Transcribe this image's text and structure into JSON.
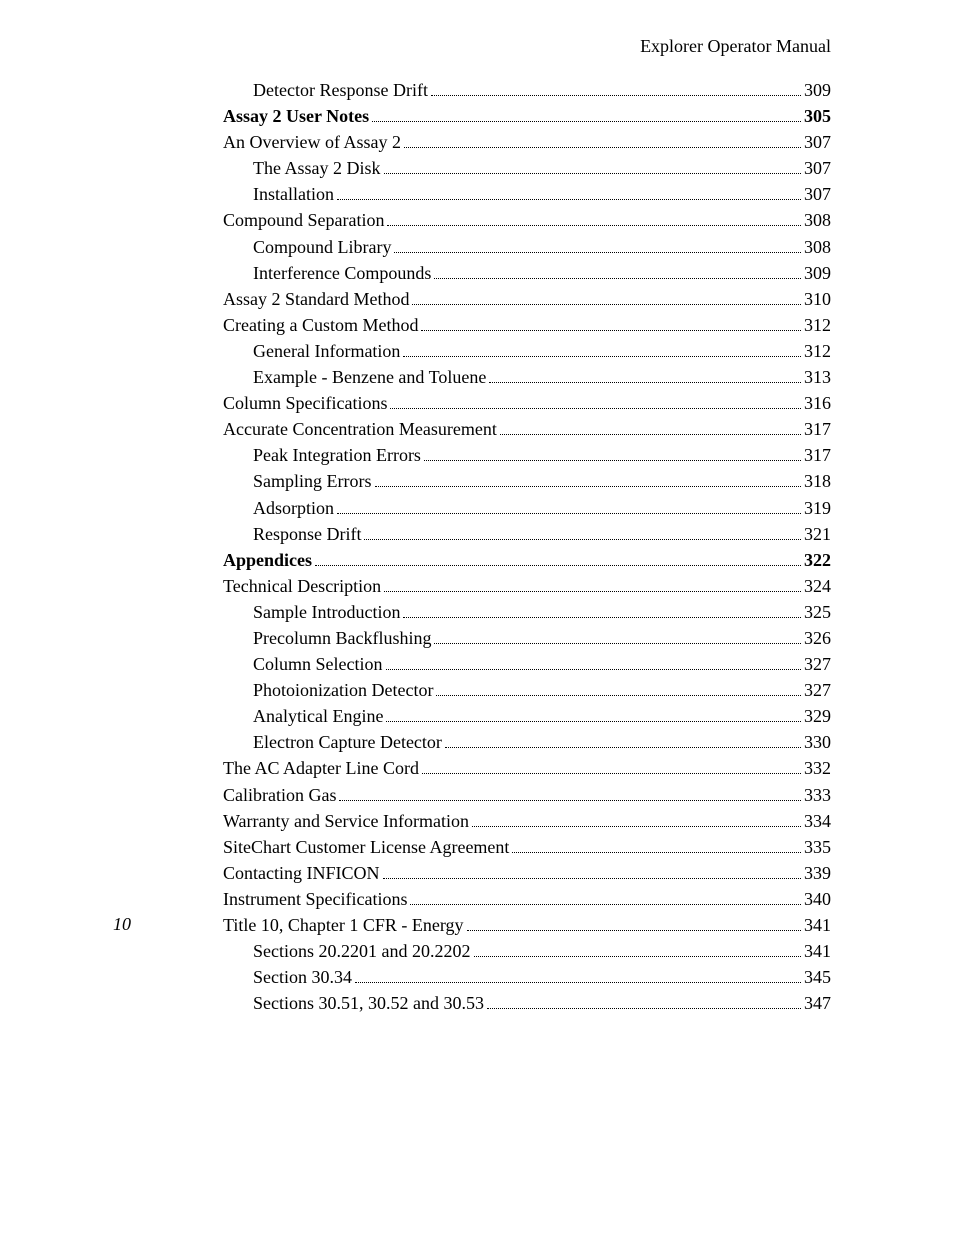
{
  "header": "Explorer Operator Manual",
  "page_number": "10",
  "toc": [
    {
      "title": "Detector Response Drift",
      "page": "309",
      "indent": 1,
      "bold": false
    },
    {
      "title": "Assay 2  User Notes",
      "page": "305",
      "indent": 0,
      "bold": true
    },
    {
      "title": "An Overview of Assay 2",
      "page": "307",
      "indent": 0,
      "bold": false
    },
    {
      "title": "The Assay 2 Disk",
      "page": "307",
      "indent": 1,
      "bold": false
    },
    {
      "title": "Installation",
      "page": "307",
      "indent": 1,
      "bold": false
    },
    {
      "title": "Compound Separation",
      "page": "308",
      "indent": 0,
      "bold": false
    },
    {
      "title": "Compound Library",
      "page": "308",
      "indent": 1,
      "bold": false
    },
    {
      "title": "Interference Compounds",
      "page": "309",
      "indent": 1,
      "bold": false
    },
    {
      "title": "Assay 2 Standard Method",
      "page": "310",
      "indent": 0,
      "bold": false
    },
    {
      "title": "Creating a Custom Method",
      "page": "312",
      "indent": 0,
      "bold": false
    },
    {
      "title": "General Information",
      "page": "312",
      "indent": 1,
      "bold": false
    },
    {
      "title": "Example - Benzene and Toluene",
      "page": "313",
      "indent": 1,
      "bold": false
    },
    {
      "title": "Column Specifications",
      "page": "316",
      "indent": 0,
      "bold": false
    },
    {
      "title": "Accurate Concentration Measurement",
      "page": "317",
      "indent": 0,
      "bold": false
    },
    {
      "title": "Peak Integration Errors",
      "page": "317",
      "indent": 1,
      "bold": false
    },
    {
      "title": "Sampling Errors",
      "page": "318",
      "indent": 1,
      "bold": false
    },
    {
      "title": "Adsorption",
      "page": "319",
      "indent": 1,
      "bold": false
    },
    {
      "title": "Response Drift",
      "page": "321",
      "indent": 1,
      "bold": false
    },
    {
      "title": "Appendices",
      "page": "322",
      "indent": 0,
      "bold": true
    },
    {
      "title": "Technical Description",
      "page": "324",
      "indent": 0,
      "bold": false
    },
    {
      "title": "Sample Introduction",
      "page": "325",
      "indent": 1,
      "bold": false
    },
    {
      "title": "Precolumn Backflushing",
      "page": "326",
      "indent": 1,
      "bold": false
    },
    {
      "title": "Column Selection",
      "page": "327",
      "indent": 1,
      "bold": false
    },
    {
      "title": "Photoionization Detector",
      "page": "327",
      "indent": 1,
      "bold": false
    },
    {
      "title": "Analytical Engine",
      "page": "329",
      "indent": 1,
      "bold": false
    },
    {
      "title": "Electron Capture Detector",
      "page": "330",
      "indent": 1,
      "bold": false
    },
    {
      "title": "The AC Adapter Line Cord",
      "page": "332",
      "indent": 0,
      "bold": false
    },
    {
      "title": "Calibration Gas",
      "page": "333",
      "indent": 0,
      "bold": false
    },
    {
      "title": "Warranty and Service Information",
      "page": "334",
      "indent": 0,
      "bold": false
    },
    {
      "title": "SiteChart Customer License Agreement",
      "page": "335",
      "indent": 0,
      "bold": false
    },
    {
      "title": "Contacting INFICON",
      "page": "339",
      "indent": 0,
      "bold": false
    },
    {
      "title": "Instrument Specifications",
      "page": "340",
      "indent": 0,
      "bold": false
    },
    {
      "title": "Title 10, Chapter 1 CFR - Energy",
      "page": "341",
      "indent": 0,
      "bold": false
    },
    {
      "title": "Sections 20.2201 and 20.2202",
      "page": "341",
      "indent": 1,
      "bold": false
    },
    {
      "title": "Section 30.34",
      "page": "345",
      "indent": 1,
      "bold": false
    },
    {
      "title": "Sections 30.51, 30.52 and 30.53",
      "page": "347",
      "indent": 1,
      "bold": false
    }
  ]
}
